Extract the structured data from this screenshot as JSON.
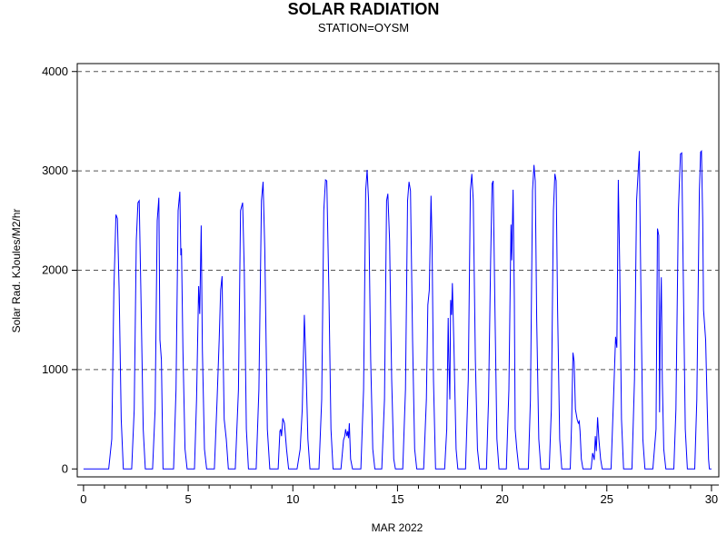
{
  "chart_data": {
    "type": "line",
    "title": "SOLAR RADIATION",
    "subtitle": "STATION=OYSM",
    "xlabel": "MAR 2022",
    "ylabel": "Solar Rad. KJoules/M2/hr",
    "xlim": [
      -0.3,
      30.35
    ],
    "ylim": [
      -80,
      4080
    ],
    "xticks": [
      0,
      5,
      10,
      15,
      20,
      25,
      30
    ],
    "yticks": [
      0,
      1000,
      2000,
      3000,
      4000
    ],
    "y_gridlines": [
      1000,
      2000,
      3000,
      4000
    ],
    "grid": "horizontal dashed",
    "line_color": "#0000ff",
    "series": [
      {
        "values": [
          [
            0.0,
            0
          ],
          [
            1.2,
            0
          ],
          [
            1.35,
            300
          ],
          [
            1.45,
            1800
          ],
          [
            1.55,
            2560
          ],
          [
            1.62,
            2520
          ],
          [
            1.7,
            1800
          ],
          [
            1.8,
            500
          ],
          [
            1.9,
            0
          ],
          [
            2.3,
            0
          ],
          [
            2.42,
            600
          ],
          [
            2.52,
            2300
          ],
          [
            2.6,
            2680
          ],
          [
            2.66,
            2700
          ],
          [
            2.74,
            1800
          ],
          [
            2.85,
            400
          ],
          [
            2.95,
            0
          ],
          [
            3.3,
            0
          ],
          [
            3.42,
            600
          ],
          [
            3.52,
            2500
          ],
          [
            3.6,
            2730
          ],
          [
            3.65,
            1300
          ],
          [
            3.72,
            1100
          ],
          [
            3.8,
            0
          ],
          [
            4.3,
            0
          ],
          [
            4.42,
            800
          ],
          [
            4.52,
            2600
          ],
          [
            4.6,
            2790
          ],
          [
            4.65,
            2150
          ],
          [
            4.68,
            2220
          ],
          [
            4.75,
            1200
          ],
          [
            4.85,
            200
          ],
          [
            4.95,
            0
          ],
          [
            5.3,
            0
          ],
          [
            5.4,
            700
          ],
          [
            5.5,
            1840
          ],
          [
            5.55,
            1560
          ],
          [
            5.62,
            2450
          ],
          [
            5.68,
            1200
          ],
          [
            5.78,
            200
          ],
          [
            5.88,
            0
          ],
          [
            6.25,
            0
          ],
          [
            6.38,
            700
          ],
          [
            6.48,
            1300
          ],
          [
            6.55,
            1800
          ],
          [
            6.62,
            1940
          ],
          [
            6.66,
            1300
          ],
          [
            6.72,
            500
          ],
          [
            6.82,
            300
          ],
          [
            6.92,
            0
          ],
          [
            7.25,
            0
          ],
          [
            7.4,
            800
          ],
          [
            7.5,
            2600
          ],
          [
            7.6,
            2680
          ],
          [
            7.68,
            2000
          ],
          [
            7.78,
            400
          ],
          [
            7.88,
            0
          ],
          [
            8.25,
            0
          ],
          [
            8.38,
            800
          ],
          [
            8.5,
            2700
          ],
          [
            8.58,
            2890
          ],
          [
            8.66,
            2200
          ],
          [
            8.78,
            400
          ],
          [
            8.9,
            0
          ],
          [
            9.3,
            0
          ],
          [
            9.38,
            380
          ],
          [
            9.42,
            400
          ],
          [
            9.46,
            330
          ],
          [
            9.52,
            510
          ],
          [
            9.6,
            460
          ],
          [
            9.7,
            200
          ],
          [
            9.8,
            0
          ],
          [
            10.2,
            0
          ],
          [
            10.35,
            200
          ],
          [
            10.45,
            600
          ],
          [
            10.55,
            1550
          ],
          [
            10.62,
            1100
          ],
          [
            10.72,
            300
          ],
          [
            10.82,
            0
          ],
          [
            11.25,
            0
          ],
          [
            11.38,
            700
          ],
          [
            11.48,
            2600
          ],
          [
            11.56,
            2910
          ],
          [
            11.62,
            2900
          ],
          [
            11.72,
            1800
          ],
          [
            11.82,
            400
          ],
          [
            11.92,
            0
          ],
          [
            12.3,
            0
          ],
          [
            12.42,
            290
          ],
          [
            12.48,
            330
          ],
          [
            12.52,
            400
          ],
          [
            12.58,
            330
          ],
          [
            12.62,
            380
          ],
          [
            12.66,
            310
          ],
          [
            12.7,
            460
          ],
          [
            12.76,
            100
          ],
          [
            12.85,
            0
          ],
          [
            13.25,
            0
          ],
          [
            13.38,
            800
          ],
          [
            13.48,
            2800
          ],
          [
            13.55,
            3010
          ],
          [
            13.62,
            2700
          ],
          [
            13.72,
            1100
          ],
          [
            13.82,
            200
          ],
          [
            13.92,
            0
          ],
          [
            14.25,
            0
          ],
          [
            14.38,
            700
          ],
          [
            14.48,
            2700
          ],
          [
            14.54,
            2770
          ],
          [
            14.62,
            2300
          ],
          [
            14.72,
            900
          ],
          [
            14.82,
            100
          ],
          [
            14.9,
            0
          ],
          [
            15.25,
            0
          ],
          [
            15.38,
            800
          ],
          [
            15.48,
            2700
          ],
          [
            15.55,
            2890
          ],
          [
            15.62,
            2800
          ],
          [
            15.72,
            1300
          ],
          [
            15.82,
            200
          ],
          [
            15.92,
            0
          ],
          [
            16.25,
            0
          ],
          [
            16.38,
            700
          ],
          [
            16.45,
            1650
          ],
          [
            16.52,
            1800
          ],
          [
            16.6,
            2750
          ],
          [
            16.65,
            2300
          ],
          [
            16.72,
            900
          ],
          [
            16.82,
            0
          ],
          [
            17.25,
            0
          ],
          [
            17.35,
            400
          ],
          [
            17.42,
            1520
          ],
          [
            17.45,
            1100
          ],
          [
            17.5,
            700
          ],
          [
            17.54,
            1700
          ],
          [
            17.58,
            1550
          ],
          [
            17.62,
            1870
          ],
          [
            17.7,
            1200
          ],
          [
            17.8,
            200
          ],
          [
            17.88,
            0
          ],
          [
            18.25,
            0
          ],
          [
            18.38,
            900
          ],
          [
            18.48,
            2800
          ],
          [
            18.55,
            2970
          ],
          [
            18.62,
            2700
          ],
          [
            18.72,
            1100
          ],
          [
            18.82,
            200
          ],
          [
            18.92,
            0
          ],
          [
            19.25,
            0
          ],
          [
            19.35,
            700
          ],
          [
            19.45,
            2100
          ],
          [
            19.52,
            2870
          ],
          [
            19.57,
            2900
          ],
          [
            19.65,
            1700
          ],
          [
            19.75,
            300
          ],
          [
            19.85,
            0
          ],
          [
            20.2,
            0
          ],
          [
            20.32,
            800
          ],
          [
            20.42,
            2460
          ],
          [
            20.46,
            2100
          ],
          [
            20.52,
            2810
          ],
          [
            20.58,
            1700
          ],
          [
            20.62,
            400
          ],
          [
            20.7,
            200
          ],
          [
            20.8,
            0
          ],
          [
            21.25,
            0
          ],
          [
            21.35,
            700
          ],
          [
            21.45,
            2800
          ],
          [
            21.52,
            3060
          ],
          [
            21.58,
            2900
          ],
          [
            21.65,
            1500
          ],
          [
            21.75,
            300
          ],
          [
            21.85,
            0
          ],
          [
            22.25,
            0
          ],
          [
            22.35,
            600
          ],
          [
            22.45,
            2600
          ],
          [
            22.52,
            2970
          ],
          [
            22.58,
            2900
          ],
          [
            22.65,
            1600
          ],
          [
            22.75,
            300
          ],
          [
            22.85,
            0
          ],
          [
            23.25,
            0
          ],
          [
            23.32,
            500
          ],
          [
            23.38,
            1170
          ],
          [
            23.44,
            1080
          ],
          [
            23.5,
            600
          ],
          [
            23.58,
            500
          ],
          [
            23.64,
            460
          ],
          [
            23.68,
            480
          ],
          [
            23.72,
            380
          ],
          [
            23.78,
            100
          ],
          [
            23.86,
            0
          ],
          [
            24.25,
            0
          ],
          [
            24.32,
            160
          ],
          [
            24.36,
            130
          ],
          [
            24.4,
            90
          ],
          [
            24.45,
            330
          ],
          [
            24.5,
            180
          ],
          [
            24.56,
            520
          ],
          [
            24.62,
            300
          ],
          [
            24.7,
            100
          ],
          [
            24.78,
            0
          ],
          [
            25.2,
            0
          ],
          [
            25.32,
            700
          ],
          [
            25.42,
            1330
          ],
          [
            25.48,
            1220
          ],
          [
            25.55,
            2910
          ],
          [
            25.62,
            2000
          ],
          [
            25.7,
            500
          ],
          [
            25.8,
            0
          ],
          [
            26.2,
            0
          ],
          [
            26.32,
            900
          ],
          [
            26.42,
            2700
          ],
          [
            26.5,
            3000
          ],
          [
            26.55,
            3200
          ],
          [
            26.6,
            2300
          ],
          [
            26.65,
            1400
          ],
          [
            26.72,
            300
          ],
          [
            26.82,
            0
          ],
          [
            27.2,
            0
          ],
          [
            27.35,
            400
          ],
          [
            27.42,
            2420
          ],
          [
            27.48,
            2350
          ],
          [
            27.52,
            570
          ],
          [
            27.55,
            1400
          ],
          [
            27.6,
            1930
          ],
          [
            27.65,
            900
          ],
          [
            27.72,
            200
          ],
          [
            27.82,
            0
          ],
          [
            28.2,
            0
          ],
          [
            28.3,
            600
          ],
          [
            28.42,
            2600
          ],
          [
            28.52,
            3170
          ],
          [
            28.58,
            3180
          ],
          [
            28.65,
            2000
          ],
          [
            28.75,
            400
          ],
          [
            28.85,
            0
          ],
          [
            29.2,
            0
          ],
          [
            29.3,
            700
          ],
          [
            29.42,
            2800
          ],
          [
            29.48,
            3190
          ],
          [
            29.52,
            3200
          ],
          [
            29.58,
            2500
          ],
          [
            29.62,
            1600
          ],
          [
            29.72,
            1300
          ],
          [
            29.8,
            600
          ],
          [
            29.86,
            100
          ],
          [
            29.9,
            0
          ],
          [
            30.0,
            0
          ]
        ]
      }
    ]
  }
}
